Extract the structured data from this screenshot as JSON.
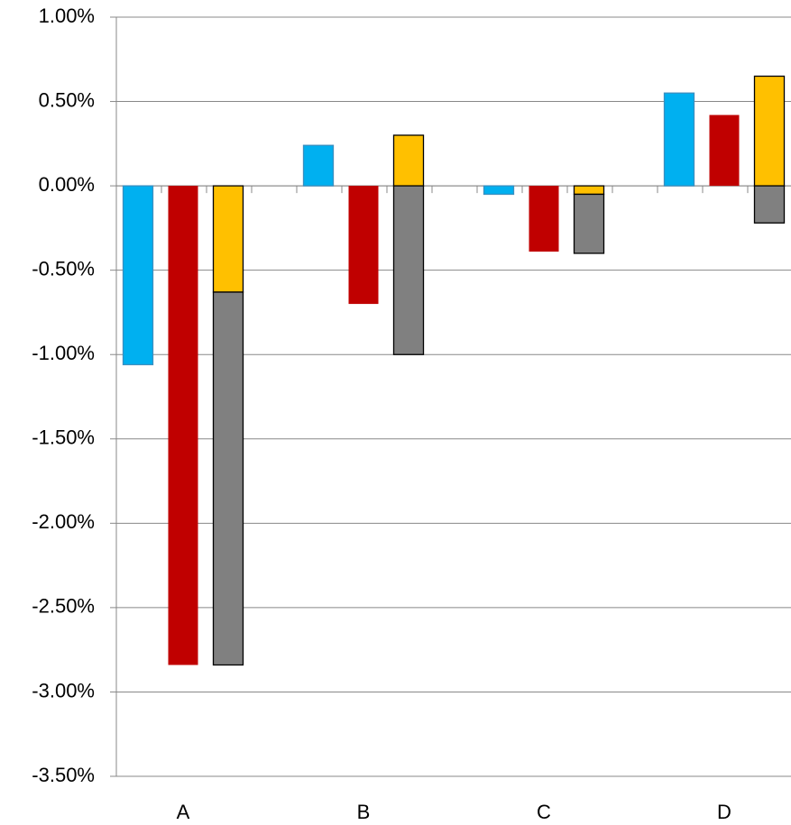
{
  "chart_data": {
    "type": "bar",
    "categories": [
      "A",
      "B",
      "C",
      "D"
    ],
    "series": [
      {
        "color": "#00b0f0",
        "edgecolor": "#3a8fc0",
        "values": [
          -1.06,
          0.24,
          -0.05,
          0.55
        ]
      },
      {
        "color": "#c00000",
        "values": [
          -2.84,
          -0.7,
          -0.39,
          0.42
        ]
      },
      {
        "color": "#ffc000",
        "edgecolor": "#000000",
        "values": [
          -0.63,
          0.3,
          -0.05,
          0.65
        ]
      },
      {
        "color": "#808080",
        "edgecolor": "#000000",
        "values": [
          -2.21,
          -1.0,
          -0.35,
          -0.22
        ]
      }
    ],
    "ylim": [
      -3.5,
      1
    ],
    "yticks": [
      {
        "value": -3.5,
        "label": "-3.50%"
      },
      {
        "value": -3,
        "label": "-3.00%"
      },
      {
        "value": -2.5,
        "label": "-2.50%"
      },
      {
        "value": -2,
        "label": "-2.00%"
      },
      {
        "value": -1.5,
        "label": "-1.50%"
      },
      {
        "value": -1,
        "label": "-1.00%"
      },
      {
        "value": -0.5,
        "label": "-0.50%"
      },
      {
        "value": 0,
        "label": "0.00%"
      },
      {
        "value": 0.5,
        "label": "0.50%"
      },
      {
        "value": 1,
        "label": "1.00%"
      }
    ],
    "grid": true
  }
}
